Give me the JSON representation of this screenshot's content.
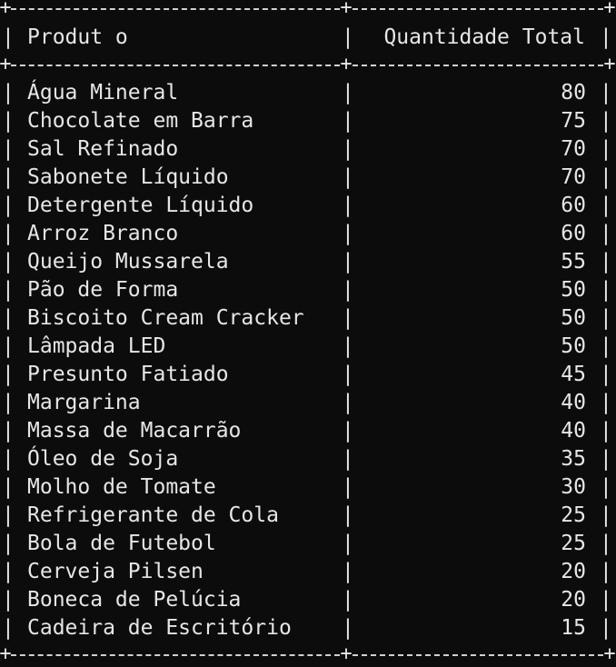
{
  "table": {
    "header": {
      "product": "Produt o",
      "quantity": "Quantidade Total"
    },
    "rows": [
      {
        "product": "Água Mineral",
        "quantity": "80"
      },
      {
        "product": "Chocolate em Barra",
        "quantity": "75"
      },
      {
        "product": "Sal Refinado",
        "quantity": "70"
      },
      {
        "product": "Sabonete Líquido",
        "quantity": "70"
      },
      {
        "product": "Detergente Líquido",
        "quantity": "60"
      },
      {
        "product": "Arroz Branco",
        "quantity": "60"
      },
      {
        "product": "Queijo Mussarela",
        "quantity": "55"
      },
      {
        "product": "Pão de Forma",
        "quantity": "50"
      },
      {
        "product": "Biscoito Cream Cracker",
        "quantity": "50"
      },
      {
        "product": "Lâmpada LED",
        "quantity": "50"
      },
      {
        "product": "Presunto Fatiado",
        "quantity": "45"
      },
      {
        "product": "Margarina",
        "quantity": "40"
      },
      {
        "product": "Massa de Macarrão",
        "quantity": "40"
      },
      {
        "product": "Óleo de Soja",
        "quantity": "35"
      },
      {
        "product": "Molho de Tomate",
        "quantity": "30"
      },
      {
        "product": "Refrigerante de Cola",
        "quantity": "25"
      },
      {
        "product": "Bola de Futebol",
        "quantity": "25"
      },
      {
        "product": "Cerveja Pilsen",
        "quantity": "20"
      },
      {
        "product": "Boneca de Pelúcia",
        "quantity": "20"
      },
      {
        "product": "Cadeira de Escritório",
        "quantity": "15"
      }
    ]
  },
  "colors": {
    "background": "#0c0c0c",
    "text": "#e6e6e6"
  }
}
